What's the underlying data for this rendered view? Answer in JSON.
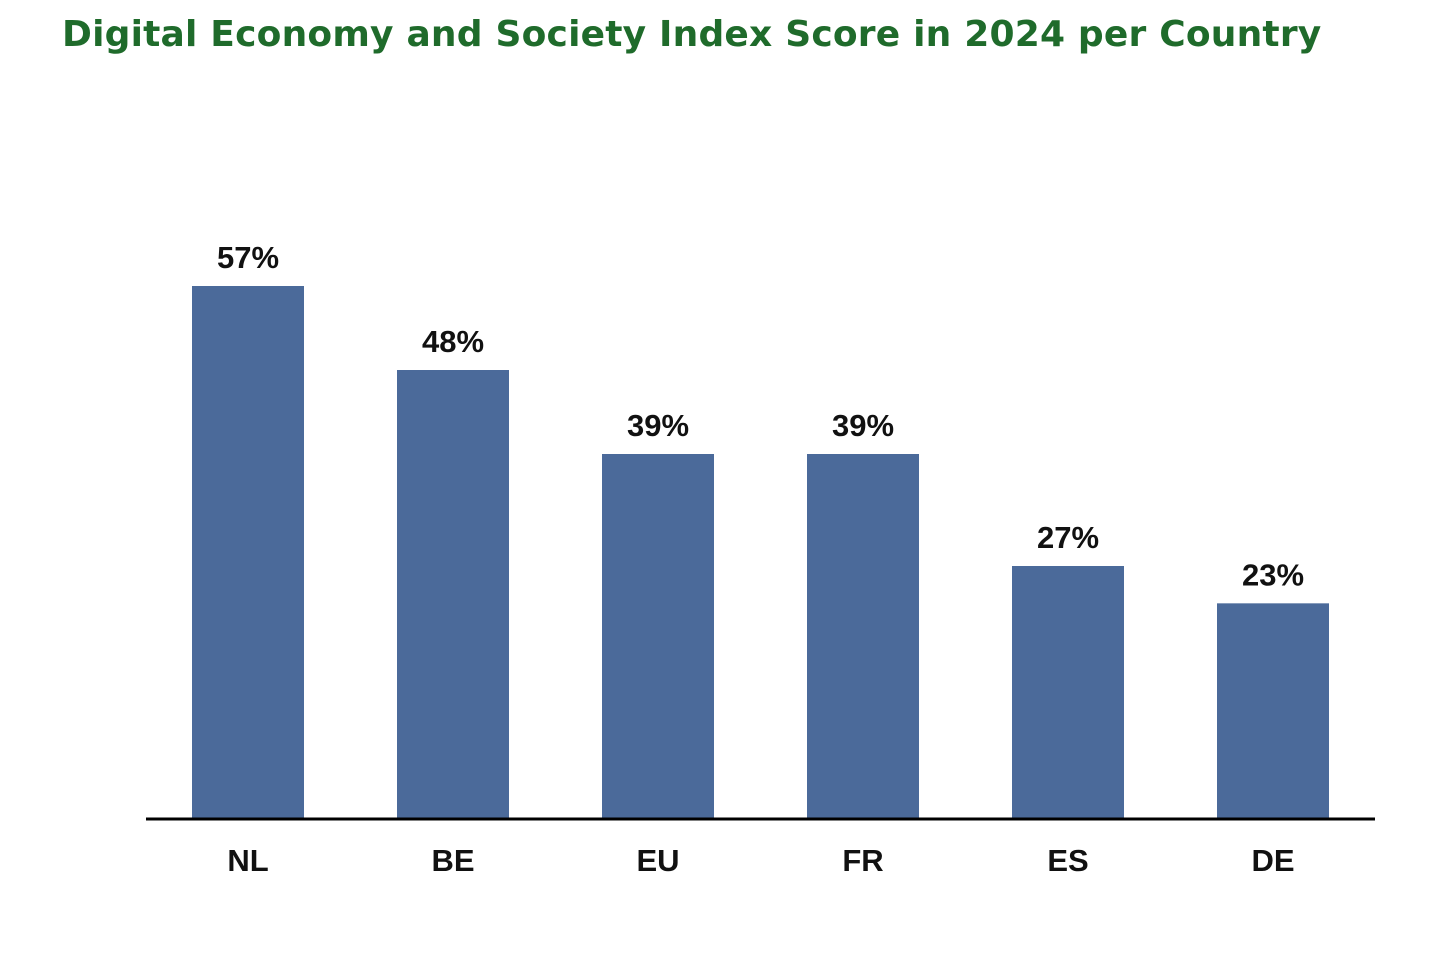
{
  "chart_data": {
    "type": "bar",
    "title": "Digital Economy and Society Index Score in 2024 per Country",
    "categories": [
      "NL",
      "BE",
      "EU",
      "FR",
      "ES",
      "DE"
    ],
    "values": [
      57,
      48,
      39,
      39,
      27,
      23
    ],
    "value_labels": [
      "57%",
      "48%",
      "39%",
      "39%",
      "27%",
      "23%"
    ],
    "unit": "%",
    "xlabel": "",
    "ylabel": "",
    "ylim": [
      0,
      57
    ],
    "grid": false,
    "legend": "none",
    "bar_color": "#4b6a9a",
    "title_color": "#1f6b2b",
    "axis_color": "#000000"
  }
}
